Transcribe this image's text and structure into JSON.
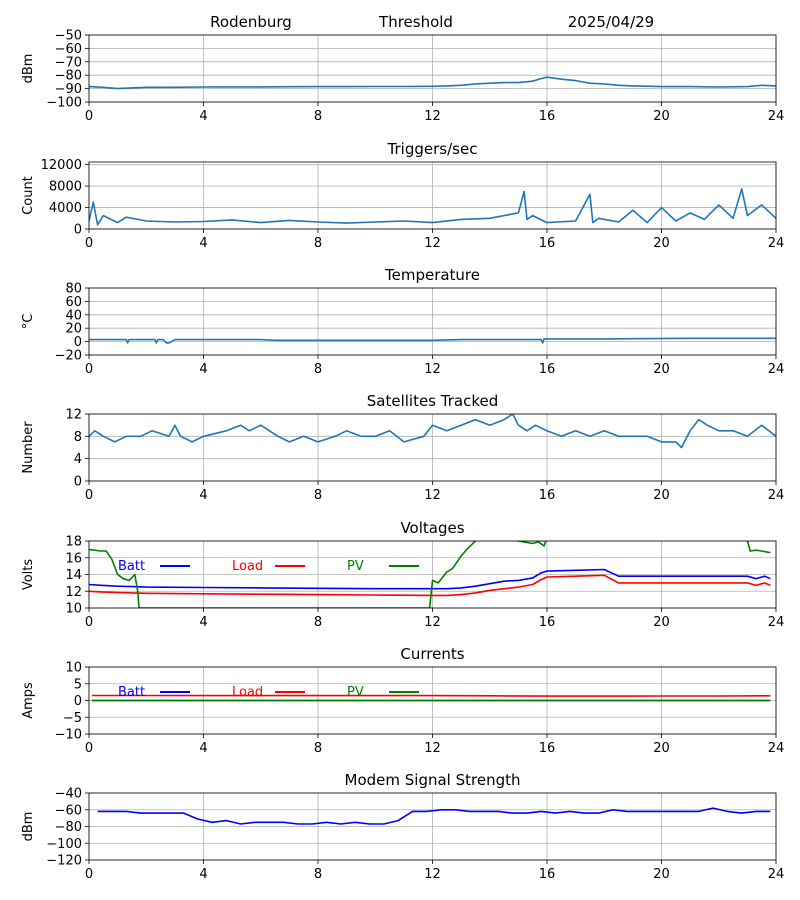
{
  "header": {
    "station": "Rodenburg",
    "chart_name": "Threshold",
    "date": "2025/04/29"
  },
  "chart_data": [
    {
      "type": "line",
      "title": "",
      "ylabel": "dBm",
      "xlim": [
        0,
        24
      ],
      "ylim": [
        -100,
        -50
      ],
      "xticks": [
        0,
        4,
        8,
        12,
        16,
        20,
        24
      ],
      "xtick_labels": [
        "0",
        "4",
        "8",
        "12",
        "16",
        "20",
        "24"
      ],
      "yticks": [
        -100,
        -90,
        -80,
        -70,
        -60,
        -50
      ],
      "ytick_labels": [
        "−100",
        "−90",
        "−80",
        "−70",
        "−60",
        "−50"
      ],
      "grid": true,
      "legend": [],
      "series": [
        {
          "color": "#1f77b4",
          "x": [
            0,
            0.5,
            1,
            1.5,
            2,
            3,
            4,
            5,
            6,
            7,
            8,
            9,
            10,
            11,
            12,
            12.5,
            13,
            13.5,
            14,
            14.5,
            15,
            15.5,
            15.8,
            16,
            16.2,
            16.5,
            17,
            17.5,
            18,
            18.5,
            19,
            20,
            21,
            22,
            23,
            23.5,
            24
          ],
          "y": [
            -88.5,
            -89,
            -90,
            -89.5,
            -89,
            -89,
            -88.8,
            -88.7,
            -88.7,
            -88.6,
            -88.5,
            -88.5,
            -88.4,
            -88.4,
            -88.3,
            -88,
            -87.5,
            -86.5,
            -86,
            -85.5,
            -85.5,
            -84.5,
            -82.5,
            -81.5,
            -82,
            -83,
            -84,
            -86,
            -86.5,
            -87.5,
            -88,
            -88.5,
            -88.5,
            -88.8,
            -88.5,
            -87.5,
            -88
          ]
        }
      ]
    },
    {
      "type": "line",
      "title": "Triggers/sec",
      "ylabel": "Count",
      "xlim": [
        0,
        24
      ],
      "ylim": [
        0,
        12500
      ],
      "xticks": [
        0,
        4,
        8,
        12,
        16,
        20,
        24
      ],
      "xtick_labels": [
        "0",
        "4",
        "8",
        "12",
        "16",
        "20",
        "24"
      ],
      "yticks": [
        0,
        4000,
        8000,
        12000
      ],
      "ytick_labels": [
        "0",
        "4000",
        "8000",
        "12000"
      ],
      "grid": true,
      "legend": [],
      "series": [
        {
          "color": "#1f77b4",
          "x": [
            0,
            0.15,
            0.3,
            0.5,
            1,
            1.3,
            2,
            3,
            4,
            5,
            6,
            7,
            8,
            9,
            10,
            11,
            12,
            13,
            14,
            15,
            15.2,
            15.3,
            15.5,
            16,
            17,
            17.5,
            17.6,
            17.8,
            18.5,
            19,
            19.5,
            20,
            20.5,
            21,
            21.5,
            22,
            22.5,
            22.8,
            23,
            23.5,
            24
          ],
          "y": [
            1500,
            5000,
            800,
            2500,
            1200,
            2200,
            1500,
            1300,
            1400,
            1700,
            1200,
            1600,
            1300,
            1100,
            1300,
            1500,
            1200,
            1800,
            2000,
            3000,
            7000,
            1800,
            2500,
            1200,
            1500,
            6500,
            1200,
            2000,
            1300,
            3500,
            1200,
            4000,
            1500,
            3000,
            1800,
            4500,
            2000,
            7500,
            2500,
            4500,
            2000
          ]
        }
      ]
    },
    {
      "type": "line",
      "title": "Temperature",
      "ylabel": "°C",
      "xlim": [
        0,
        24
      ],
      "ylim": [
        -20,
        80
      ],
      "xticks": [
        0,
        4,
        8,
        12,
        16,
        20,
        24
      ],
      "xtick_labels": [
        "0",
        "4",
        "8",
        "12",
        "16",
        "20",
        "24"
      ],
      "yticks": [
        -20,
        0,
        20,
        40,
        60,
        80
      ],
      "ytick_labels": [
        "−20",
        "0",
        "20",
        "40",
        "60",
        "80"
      ],
      "grid": true,
      "legend": [],
      "series": [
        {
          "color": "#1f77b4",
          "x": [
            0,
            1.3,
            1.35,
            1.4,
            2.3,
            2.35,
            2.4,
            2.6,
            2.7,
            2.8,
            3,
            6,
            6.5,
            8,
            10,
            12,
            13,
            15.8,
            15.85,
            15.9,
            16,
            18,
            21,
            22,
            24
          ],
          "y": [
            3,
            3,
            -2,
            3,
            3,
            -2,
            3,
            3,
            -2,
            -2,
            3,
            3,
            2,
            2,
            2,
            2,
            3,
            3,
            -2,
            4,
            4,
            4,
            5,
            5,
            5
          ]
        }
      ]
    },
    {
      "type": "line",
      "title": "Satellites Tracked",
      "ylabel": "Number",
      "xlim": [
        0,
        24
      ],
      "ylim": [
        0,
        12
      ],
      "xticks": [
        0,
        4,
        8,
        12,
        16,
        20,
        24
      ],
      "xtick_labels": [
        "0",
        "4",
        "8",
        "12",
        "16",
        "20",
        "24"
      ],
      "yticks": [
        0,
        4,
        8,
        12
      ],
      "ytick_labels": [
        "0",
        "4",
        "8",
        "12"
      ],
      "grid": true,
      "legend": [],
      "series": [
        {
          "color": "#1f77b4",
          "x": [
            0,
            0.2,
            0.5,
            0.9,
            1.3,
            1.8,
            2.2,
            2.8,
            3,
            3.2,
            3.6,
            4,
            4.8,
            5.3,
            5.6,
            6,
            6.6,
            7,
            7.5,
            8,
            8.6,
            9,
            9.5,
            10,
            10.5,
            11,
            11.7,
            12,
            12.5,
            13,
            13.5,
            14,
            14.5,
            14.8,
            15,
            15.3,
            15.6,
            16,
            16.5,
            17,
            17.5,
            18,
            18.5,
            19,
            19.5,
            20,
            20.5,
            20.7,
            21,
            21.3,
            21.6,
            22,
            22.5,
            23,
            23.5,
            24
          ],
          "y": [
            8,
            9,
            8,
            7,
            8,
            8,
            9,
            8,
            10,
            8,
            7,
            8,
            9,
            10,
            9,
            10,
            8,
            7,
            8,
            7,
            8,
            9,
            8,
            8,
            9,
            7,
            8,
            10,
            9,
            10,
            11,
            10,
            11,
            12,
            10,
            9,
            10,
            9,
            8,
            9,
            8,
            9,
            8,
            8,
            8,
            7,
            7,
            6,
            9,
            11,
            10,
            9,
            9,
            8,
            10,
            8
          ]
        }
      ]
    },
    {
      "type": "line",
      "title": "Voltages",
      "ylabel": "Volts",
      "xlim": [
        0,
        24
      ],
      "ylim": [
        10,
        18
      ],
      "xticks": [
        0,
        4,
        8,
        12,
        16,
        20,
        24
      ],
      "xtick_labels": [
        "0",
        "4",
        "8",
        "12",
        "16",
        "20",
        "24"
      ],
      "yticks": [
        10,
        12,
        14,
        16,
        18
      ],
      "ytick_labels": [
        "10",
        "12",
        "14",
        "16",
        "18"
      ],
      "grid": true,
      "legend": [
        {
          "name": "Batt",
          "color": "#0000ff"
        },
        {
          "name": "Load",
          "color": "#ff0000"
        },
        {
          "name": "PV",
          "color": "#008000"
        }
      ],
      "series": [
        {
          "name": "Batt",
          "color": "#0000ff",
          "x": [
            0,
            0.5,
            1,
            1.5,
            2,
            4,
            6,
            8,
            10,
            12,
            12.5,
            13,
            13.5,
            14,
            14.5,
            15,
            15.5,
            15.8,
            16,
            17,
            18,
            18.5,
            19,
            20,
            21,
            22,
            23,
            23.3,
            23.6,
            23.8
          ],
          "y": [
            12.8,
            12.7,
            12.6,
            12.55,
            12.5,
            12.45,
            12.4,
            12.35,
            12.3,
            12.3,
            12.3,
            12.4,
            12.6,
            12.9,
            13.2,
            13.3,
            13.6,
            14.2,
            14.4,
            14.5,
            14.6,
            13.8,
            13.8,
            13.8,
            13.8,
            13.8,
            13.8,
            13.5,
            13.8,
            13.5
          ]
        },
        {
          "name": "Load",
          "color": "#ff0000",
          "x": [
            0,
            0.5,
            1,
            1.5,
            2,
            4,
            6,
            8,
            10,
            12,
            12.5,
            13,
            13.5,
            14,
            14.5,
            15,
            15.5,
            15.8,
            16,
            17,
            18,
            18.5,
            19,
            20,
            21,
            22,
            23,
            23.3,
            23.6,
            23.8
          ],
          "y": [
            12,
            11.9,
            11.85,
            11.8,
            11.75,
            11.7,
            11.65,
            11.6,
            11.55,
            11.5,
            11.5,
            11.6,
            11.8,
            12.1,
            12.3,
            12.5,
            12.8,
            13.4,
            13.7,
            13.8,
            13.9,
            13,
            13,
            13,
            13,
            13,
            13,
            12.7,
            13,
            12.7
          ]
        },
        {
          "name": "PV",
          "color": "#008000",
          "x": [
            0,
            0.4,
            0.6,
            0.8,
            1,
            1.2,
            1.4,
            1.6,
            1.7,
            1.75,
            11.9,
            12,
            12.2,
            12.5,
            12.7,
            13,
            13.2,
            13.5,
            14,
            15,
            15.5,
            15.7,
            15.9,
            16,
            22.5,
            23,
            23.1,
            23.3,
            23.5,
            23.8
          ],
          "y": [
            17,
            16.8,
            16.8,
            15.8,
            14,
            13.5,
            13.3,
            14,
            12,
            10,
            10,
            13.3,
            13,
            14.3,
            14.7,
            16.2,
            17,
            18,
            18.5,
            18,
            17.7,
            17.9,
            17.4,
            18.5,
            18.5,
            18,
            16.8,
            16.9,
            16.8,
            16.6
          ]
        }
      ]
    },
    {
      "type": "line",
      "title": "Currents",
      "ylabel": "Amps",
      "xlim": [
        0,
        24
      ],
      "ylim": [
        -10,
        10
      ],
      "xticks": [
        0,
        4,
        8,
        12,
        16,
        20,
        24
      ],
      "xtick_labels": [
        "0",
        "4",
        "8",
        "12",
        "16",
        "20",
        "24"
      ],
      "yticks": [
        -10,
        -5,
        0,
        5,
        10
      ],
      "ytick_labels": [
        "−10",
        "−5",
        "0",
        "5",
        "10"
      ],
      "grid": true,
      "legend": [
        {
          "name": "Batt",
          "color": "#0000ff"
        },
        {
          "name": "Load",
          "color": "#ff0000"
        },
        {
          "name": "PV",
          "color": "#008000"
        }
      ],
      "series": [
        {
          "name": "Batt",
          "color": "#0000ff",
          "x": [
            0.1,
            23.8
          ],
          "y": [
            0,
            0
          ]
        },
        {
          "name": "Load",
          "color": "#ff0000",
          "x": [
            0.1,
            2,
            4,
            8,
            12,
            14,
            16,
            18,
            20,
            22,
            23.8
          ],
          "y": [
            1.5,
            1.5,
            1.45,
            1.45,
            1.45,
            1.4,
            1.3,
            1.3,
            1.35,
            1.35,
            1.4
          ]
        },
        {
          "name": "PV",
          "color": "#008000",
          "x": [
            0.1,
            23.8
          ],
          "y": [
            0,
            0
          ]
        }
      ]
    },
    {
      "type": "line",
      "title": "Modem Signal Strength",
      "ylabel": "dBm",
      "xlim": [
        0,
        24
      ],
      "ylim": [
        -120,
        -40
      ],
      "xticks": [
        0,
        4,
        8,
        12,
        16,
        20,
        24
      ],
      "xtick_labels": [
        "0",
        "4",
        "8",
        "12",
        "16",
        "20",
        "24"
      ],
      "yticks": [
        -120,
        -100,
        -80,
        -60,
        -40
      ],
      "ytick_labels": [
        "−120",
        "−100",
        "−80",
        "−60",
        "−40"
      ],
      "grid": true,
      "legend": [],
      "series": [
        {
          "color": "#0000ff",
          "x": [
            0.3,
            1.3,
            1.8,
            2.3,
            2.8,
            3.3,
            3.8,
            4.3,
            4.8,
            5.3,
            5.8,
            6.3,
            6.8,
            7.3,
            7.8,
            8.3,
            8.8,
            9.3,
            9.8,
            10.3,
            10.8,
            11.3,
            11.8,
            12.3,
            12.8,
            13.3,
            13.8,
            14.3,
            14.8,
            15.3,
            15.8,
            16.3,
            16.8,
            17.3,
            17.8,
            18.3,
            18.8,
            19.3,
            19.8,
            20.3,
            20.8,
            21.3,
            21.8,
            22.3,
            22.8,
            23.3,
            23.8
          ],
          "y": [
            -62,
            -62,
            -64,
            -64,
            -64,
            -64,
            -71,
            -75,
            -73,
            -77,
            -75,
            -75,
            -75,
            -77,
            -77,
            -75,
            -77,
            -75,
            -77,
            -77,
            -73,
            -62,
            -62,
            -60,
            -60,
            -62,
            -62,
            -62,
            -64,
            -64,
            -62,
            -64,
            -62,
            -64,
            -64,
            -60,
            -62,
            -62,
            -62,
            -62,
            -62,
            -62,
            -58,
            -62,
            -64,
            -62,
            -62
          ]
        }
      ]
    }
  ]
}
